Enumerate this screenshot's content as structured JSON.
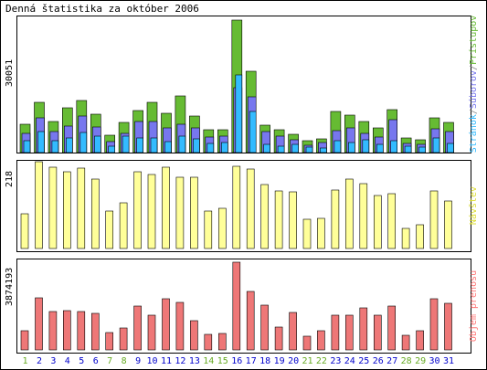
{
  "chart_data": {
    "type": "bar",
    "title": "Denná štatistika za október 2006",
    "x": [
      "1",
      "2",
      "3",
      "4",
      "5",
      "6",
      "7",
      "8",
      "9",
      "10",
      "11",
      "12",
      "13",
      "14",
      "15",
      "16",
      "17",
      "18",
      "19",
      "20",
      "21",
      "22",
      "23",
      "24",
      "25",
      "26",
      "27",
      "28",
      "29",
      "30",
      "31"
    ],
    "weekend_days": [
      "1",
      "7",
      "8",
      "14",
      "15",
      "21",
      "22",
      "28",
      "29"
    ],
    "panels": [
      {
        "id": "traffic",
        "max_label": "30051",
        "ylim": [
          0,
          30051
        ],
        "legend": [
          {
            "text": "Stránok",
            "color": "#33bbff"
          },
          {
            "text": "/",
            "color": "#888888"
          },
          {
            "text": "Súborov",
            "color": "#7777ee"
          },
          {
            "text": "/",
            "color": "#888888"
          },
          {
            "text": "Prístupov",
            "color": "#66bb33"
          }
        ],
        "series": [
          {
            "name": "Prístupov",
            "color": "#66bb33",
            "values": [
              6500,
              11500,
              7000,
              10200,
              11900,
              8700,
              3900,
              6800,
              9500,
              11400,
              9000,
              12900,
              8200,
              5100,
              5100,
              30051,
              18500,
              6200,
              5200,
              4200,
              2600,
              3100,
              9400,
              8400,
              7000,
              5600,
              9800,
              3300,
              2900,
              7800,
              6900
            ]
          },
          {
            "name": "Súborov",
            "color": "#7777ee",
            "values": [
              4300,
              7900,
              4700,
              6100,
              8200,
              5900,
              2500,
              4400,
              7000,
              7000,
              5500,
              6500,
              5600,
              3500,
              3700,
              14700,
              12700,
              4800,
              3700,
              2900,
              1600,
              2200,
              4900,
              5500,
              4300,
              3600,
              7400,
              2100,
              1800,
              5300,
              4700
            ]
          },
          {
            "name": "Stránok",
            "color": "#33bbff",
            "values": [
              2700,
              4700,
              2600,
              3300,
              4500,
              3700,
              1500,
              3700,
              3300,
              3400,
              2500,
              3800,
              3200,
              2100,
              2300,
              17600,
              9400,
              1800,
              1500,
              1900,
              1300,
              1100,
              2600,
              2300,
              3000,
              1900,
              2600,
              1400,
              1200,
              3400,
              2000
            ]
          }
        ]
      },
      {
        "id": "visits",
        "max_label": "218",
        "ylim": [
          0,
          218
        ],
        "legend": [
          {
            "text": "Návštev",
            "color": "#dddd33"
          }
        ],
        "series": [
          {
            "name": "Návštev",
            "color": "#ffff99",
            "values": [
              88,
              218,
              205,
              192,
              202,
              175,
              95,
              115,
              192,
              187,
              205,
              178,
              178,
              95,
              100,
              206,
              200,
              160,
              145,
              143,
              73,
              76,
              147,
              175,
              162,
              132,
              137,
              50,
              60,
              145,
              120
            ]
          }
        ]
      },
      {
        "id": "transfer",
        "max_label": "3874193",
        "ylim": [
          0,
          3874193
        ],
        "legend": [
          {
            "text": "Objem prenosu",
            "color": "#ff7777"
          }
        ],
        "series": [
          {
            "name": "Objem prenosu",
            "color": "#ee7777",
            "values": [
              860000,
              2300000,
              1700000,
              1720000,
              1700000,
              1600000,
              750000,
              980000,
              1950000,
              1550000,
              2250000,
              2100000,
              1300000,
              700000,
              720000,
              3874193,
              2600000,
              1960000,
              1000000,
              1650000,
              600000,
              830000,
              1550000,
              1550000,
              1850000,
              1550000,
              1950000,
              660000,
              850000,
              2250000,
              2050000
            ]
          }
        ]
      }
    ]
  },
  "colors": {
    "weekday_label": "#0000cc",
    "weekend_label": "#66aa22",
    "frame": "#000000"
  }
}
